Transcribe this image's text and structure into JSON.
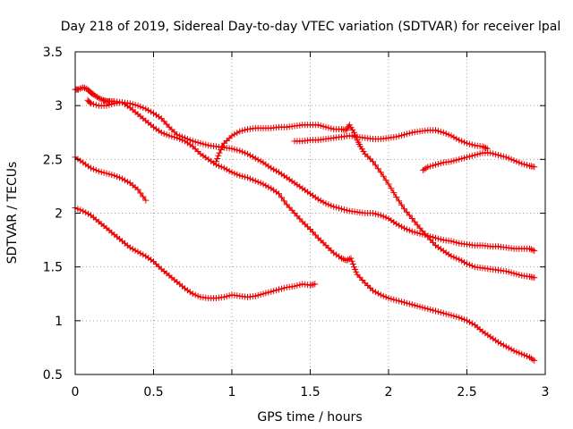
{
  "chart_data": {
    "type": "scatter",
    "title": "Day 218 of 2019, Sidereal Day-to-day VTEC variation (SDTVAR) for receiver lpal",
    "xlabel": "GPS time / hours",
    "ylabel": "SDTVAR / TECUs",
    "xlim": [
      0,
      3
    ],
    "ylim": [
      0.5,
      3.5
    ],
    "xticks": [
      0,
      0.5,
      1,
      1.5,
      2,
      2.5,
      3
    ],
    "yticks": [
      0.5,
      1,
      1.5,
      2,
      2.5,
      3,
      3.5
    ],
    "xtick_labels": [
      "0",
      "0.5",
      "1",
      "1.5",
      "2",
      "2.5",
      "3"
    ],
    "ytick_labels": [
      "0.5",
      "1",
      "1.5",
      "2",
      "2.5",
      "3",
      "3.5"
    ],
    "grid": true,
    "marker": "+",
    "color": "#ee0000",
    "series": [
      {
        "name": "s1",
        "x": [
          0,
          0.02,
          0.05,
          0.08,
          0.1,
          0.12,
          0.15,
          0.18,
          0.2,
          0.22,
          0.25,
          0.3,
          0.35,
          0.4,
          0.45,
          0.5,
          0.55,
          0.6,
          0.65,
          0.7,
          0.75,
          0.8,
          0.85,
          0.9,
          0.95,
          1.0,
          1.05,
          1.1,
          1.15,
          1.2,
          1.25,
          1.3,
          1.35,
          1.4,
          1.45,
          1.5,
          1.55,
          1.6,
          1.65,
          1.7,
          1.75,
          1.8,
          1.85,
          1.9,
          1.95,
          2.0,
          2.05,
          2.1,
          2.15,
          2.2,
          2.25,
          2.3,
          2.35,
          2.4,
          2.45,
          2.5,
          2.55,
          2.6,
          2.65,
          2.7,
          2.75,
          2.8,
          2.85,
          2.9,
          2.93
        ],
        "y": [
          3.15,
          3.15,
          3.17,
          3.15,
          3.12,
          3.1,
          3.07,
          3.05,
          3.04,
          3.04,
          3.04,
          3.03,
          3.02,
          3.0,
          2.97,
          2.93,
          2.88,
          2.8,
          2.73,
          2.7,
          2.67,
          2.65,
          2.63,
          2.62,
          2.61,
          2.6,
          2.58,
          2.55,
          2.51,
          2.47,
          2.42,
          2.38,
          2.33,
          2.28,
          2.23,
          2.18,
          2.13,
          2.09,
          2.06,
          2.04,
          2.02,
          2.01,
          2.0,
          2.0,
          1.98,
          1.95,
          1.9,
          1.86,
          1.83,
          1.81,
          1.79,
          1.77,
          1.75,
          1.74,
          1.72,
          1.71,
          1.7,
          1.7,
          1.69,
          1.69,
          1.68,
          1.67,
          1.67,
          1.67,
          1.65
        ]
      },
      {
        "name": "s2",
        "x": [
          0.08,
          0.1,
          0.15,
          0.2,
          0.25,
          0.3,
          0.35,
          0.4,
          0.45,
          0.5,
          0.55,
          0.6,
          0.65,
          0.7,
          0.75,
          0.8,
          0.85,
          0.9,
          0.95,
          1.0,
          1.05,
          1.1,
          1.15,
          1.2,
          1.25,
          1.3,
          1.35,
          1.4,
          1.45,
          1.5,
          1.55,
          1.6,
          1.65,
          1.7,
          1.73,
          1.76,
          1.78,
          1.8,
          1.85,
          1.9,
          1.95,
          2.0,
          2.05,
          2.1,
          2.15,
          2.2,
          2.25,
          2.3,
          2.35,
          2.4,
          2.45,
          2.5,
          2.55,
          2.6,
          2.65,
          2.7,
          2.75,
          2.8,
          2.85,
          2.9,
          2.93
        ],
        "y": [
          3.05,
          3.02,
          3.0,
          3.0,
          3.02,
          3.03,
          2.98,
          2.92,
          2.86,
          2.8,
          2.75,
          2.72,
          2.7,
          2.67,
          2.62,
          2.55,
          2.5,
          2.45,
          2.42,
          2.38,
          2.35,
          2.33,
          2.3,
          2.27,
          2.23,
          2.18,
          2.08,
          2.0,
          1.92,
          1.85,
          1.77,
          1.7,
          1.63,
          1.58,
          1.56,
          1.58,
          1.5,
          1.43,
          1.35,
          1.28,
          1.24,
          1.21,
          1.19,
          1.17,
          1.15,
          1.13,
          1.11,
          1.09,
          1.07,
          1.05,
          1.03,
          1.0,
          0.96,
          0.9,
          0.85,
          0.8,
          0.76,
          0.72,
          0.69,
          0.66,
          0.63
        ]
      },
      {
        "name": "s3",
        "x": [
          0,
          0.05,
          0.1,
          0.15,
          0.2,
          0.25,
          0.3,
          0.35,
          0.4,
          0.45
        ],
        "y": [
          2.52,
          2.47,
          2.42,
          2.39,
          2.37,
          2.35,
          2.32,
          2.28,
          2.22,
          2.12
        ]
      },
      {
        "name": "s4",
        "x": [
          0,
          0.05,
          0.1,
          0.15,
          0.2,
          0.25,
          0.3,
          0.35,
          0.4,
          0.45,
          0.5,
          0.55,
          0.6,
          0.65,
          0.7,
          0.75,
          0.8,
          0.85,
          0.9,
          0.95,
          1.0,
          1.05,
          1.1,
          1.15,
          1.2,
          1.25,
          1.3,
          1.35,
          1.4,
          1.45,
          1.5,
          1.53
        ],
        "y": [
          2.05,
          2.02,
          1.98,
          1.92,
          1.86,
          1.8,
          1.74,
          1.68,
          1.64,
          1.6,
          1.55,
          1.48,
          1.42,
          1.36,
          1.3,
          1.25,
          1.22,
          1.21,
          1.21,
          1.22,
          1.24,
          1.23,
          1.22,
          1.23,
          1.25,
          1.27,
          1.29,
          1.31,
          1.32,
          1.34,
          1.33,
          1.34
        ]
      },
      {
        "name": "s5",
        "x": [
          0.9,
          0.92,
          0.95,
          1.0,
          1.05,
          1.1,
          1.15,
          1.2,
          1.25,
          1.3,
          1.35,
          1.4,
          1.45,
          1.5,
          1.55,
          1.6,
          1.65,
          1.7,
          1.73,
          1.75,
          1.78,
          1.8,
          1.82,
          1.85,
          1.9,
          1.95,
          2.0,
          2.05,
          2.1,
          2.15,
          2.2,
          2.25,
          2.3,
          2.35,
          2.4,
          2.45,
          2.5,
          2.55,
          2.6,
          2.65,
          2.7,
          2.75,
          2.8,
          2.85,
          2.9,
          2.93
        ],
        "y": [
          2.48,
          2.56,
          2.65,
          2.72,
          2.76,
          2.78,
          2.79,
          2.79,
          2.79,
          2.8,
          2.8,
          2.81,
          2.82,
          2.82,
          2.82,
          2.8,
          2.78,
          2.78,
          2.77,
          2.82,
          2.75,
          2.68,
          2.62,
          2.55,
          2.48,
          2.38,
          2.27,
          2.15,
          2.04,
          1.95,
          1.86,
          1.78,
          1.7,
          1.65,
          1.6,
          1.57,
          1.53,
          1.5,
          1.49,
          1.48,
          1.47,
          1.46,
          1.44,
          1.42,
          1.41,
          1.4
        ]
      },
      {
        "name": "s6",
        "x": [
          1.4,
          1.45,
          1.5,
          1.55,
          1.6,
          1.65,
          1.7,
          1.75,
          1.8,
          1.85,
          1.9,
          1.95,
          2.0,
          2.05,
          2.1,
          2.15,
          2.2,
          2.25,
          2.3,
          2.35,
          2.4,
          2.45,
          2.5,
          2.55,
          2.6,
          2.63
        ],
        "y": [
          2.67,
          2.67,
          2.68,
          2.68,
          2.69,
          2.7,
          2.71,
          2.72,
          2.71,
          2.7,
          2.69,
          2.69,
          2.7,
          2.71,
          2.73,
          2.75,
          2.76,
          2.77,
          2.77,
          2.75,
          2.72,
          2.68,
          2.65,
          2.63,
          2.62,
          2.6
        ]
      },
      {
        "name": "s7",
        "x": [
          2.22,
          2.25,
          2.3,
          2.35,
          2.4,
          2.45,
          2.5,
          2.55,
          2.6,
          2.65,
          2.7,
          2.75,
          2.8,
          2.85,
          2.9,
          2.93
        ],
        "y": [
          2.4,
          2.43,
          2.45,
          2.47,
          2.48,
          2.5,
          2.52,
          2.54,
          2.56,
          2.56,
          2.54,
          2.52,
          2.49,
          2.46,
          2.44,
          2.43
        ]
      }
    ]
  }
}
